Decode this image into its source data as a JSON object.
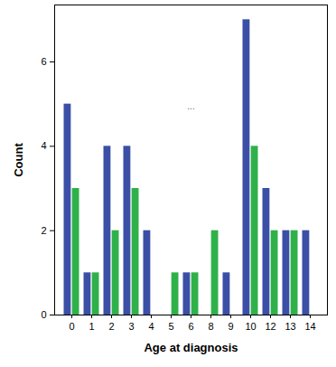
{
  "chart_data": {
    "type": "bar",
    "x_label": "Age at diagnosis",
    "y_label": "Count",
    "annotation": "...",
    "categories": [
      0,
      1,
      2,
      3,
      4,
      5,
      6,
      8,
      9,
      10,
      12,
      13,
      14
    ],
    "series": [
      {
        "color": "#3b4fa6",
        "values": [
          5,
          1,
          4,
          4,
          2,
          0,
          1,
          0,
          1,
          7,
          3,
          2,
          2
        ]
      },
      {
        "color": "#2fb14a",
        "values": [
          3,
          1,
          2,
          3,
          0,
          1,
          1,
          2,
          0,
          4,
          2,
          2,
          0
        ]
      }
    ],
    "ylim": [
      0,
      7.35
    ],
    "yticks": [
      0,
      2,
      4,
      6
    ],
    "grid": false
  }
}
